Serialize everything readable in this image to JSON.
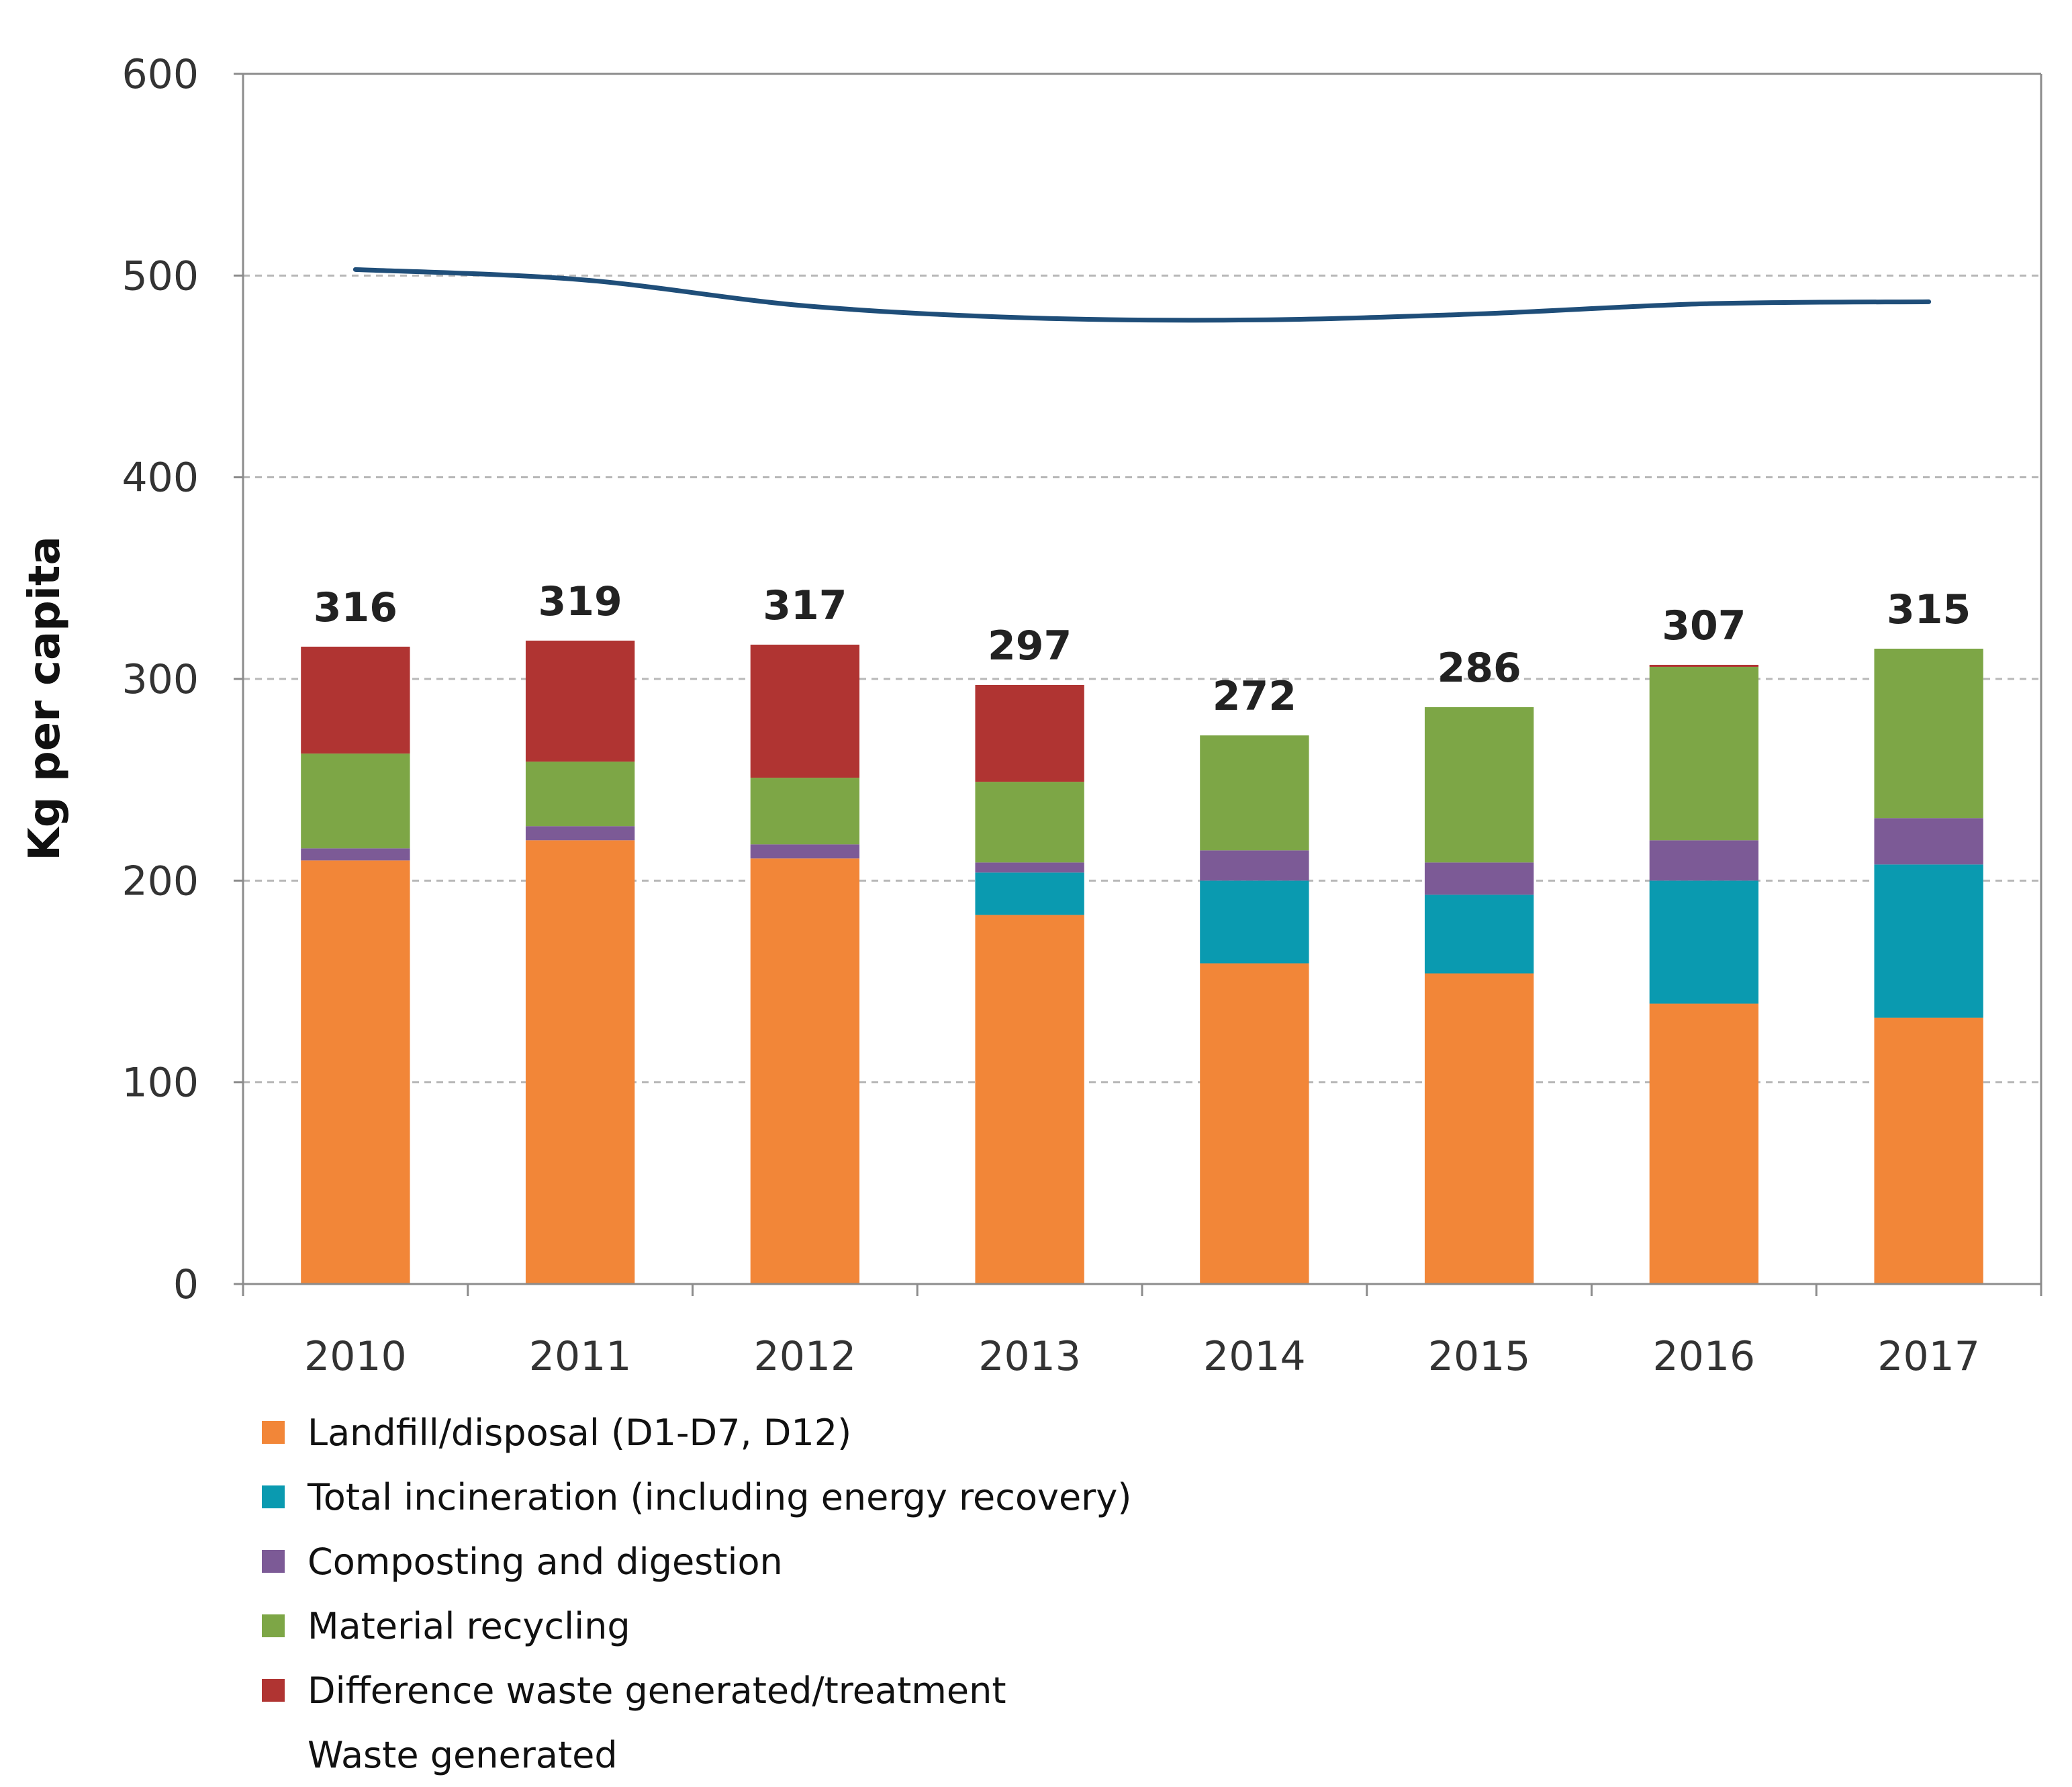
{
  "chart_data": {
    "type": "bar",
    "stacked": true,
    "categories": [
      "2010",
      "2011",
      "2012",
      "2013",
      "2014",
      "2015",
      "2016",
      "2017"
    ],
    "ylabel": "Kg per capita",
    "xlabel": "",
    "ylim": [
      0,
      600
    ],
    "yticks": [
      "0",
      "100",
      "200",
      "300",
      "400",
      "500",
      "600"
    ],
    "grid": "horizontal dashed",
    "legend_position": "bottom",
    "series": [
      {
        "name": "Landfill/disposal (D1-D7, D12)",
        "type": "bar",
        "color": "#F28638",
        "values": [
          210,
          220,
          211,
          183,
          159,
          154,
          139,
          132
        ]
      },
      {
        "name": "Total incineration (including energy recovery)",
        "type": "bar",
        "color": "#0A9AB0",
        "values": [
          0,
          0,
          0,
          21,
          41,
          39,
          61,
          76
        ]
      },
      {
        "name": "Composting and digestion",
        "type": "bar",
        "color": "#7C5A96",
        "values": [
          6,
          7,
          7,
          5,
          15,
          16,
          20,
          23
        ]
      },
      {
        "name": "Material recycling",
        "type": "bar",
        "color": "#7DA646",
        "values": [
          47,
          32,
          33,
          40,
          57,
          77,
          86,
          84
        ]
      },
      {
        "name": "Difference waste generated/treatment",
        "type": "bar",
        "color": "#B03432",
        "values": [
          53,
          60,
          66,
          48,
          0,
          0,
          1,
          0
        ]
      },
      {
        "name": "Waste generated",
        "type": "line",
        "color": "#1F4E79",
        "values": [
          503,
          498,
          485,
          479,
          478,
          481,
          486,
          487
        ]
      }
    ],
    "totals": [
      "316",
      "319",
      "317",
      "297",
      "272",
      "286",
      "307",
      "315"
    ]
  }
}
